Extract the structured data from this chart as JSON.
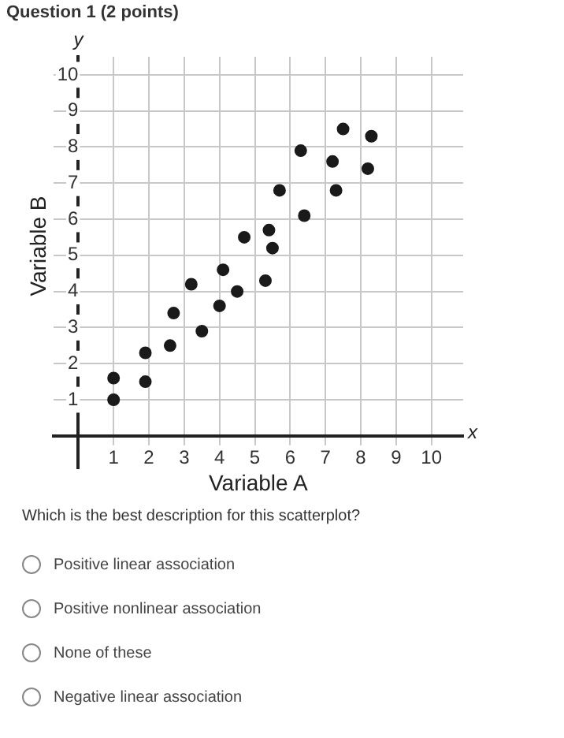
{
  "chart_data": {
    "type": "scatter",
    "title": "Question 1 (2 points)",
    "xlabel": "Variable A",
    "ylabel": "Variable B",
    "x": [
      1,
      1,
      1.9,
      1.9,
      2.6,
      2.7,
      3.2,
      3.5,
      4,
      4.1,
      4.5,
      5.3,
      4.7,
      5.4,
      5.5,
      5.7,
      6.3,
      6.4,
      7.2,
      7.3,
      7.5,
      8.2,
      8.3
    ],
    "values": [
      1.6,
      1,
      2.3,
      1.5,
      2.5,
      3.4,
      4.2,
      2.9,
      3.6,
      4.6,
      4,
      4.3,
      5.5,
      5.7,
      5.2,
      6.8,
      7.9,
      6.1,
      7.6,
      6.8,
      8.5,
      7.4,
      8.3
    ],
    "color": "#1a1a1a",
    "marker": "circle",
    "grid": true,
    "legend": false,
    "xlim": [
      -0.7,
      10.9
    ],
    "ylim": [
      -0.9,
      10.5
    ],
    "xticks": [
      1,
      2,
      3,
      4,
      5,
      6,
      7,
      8,
      9,
      10
    ],
    "yticks": [
      1,
      2,
      3,
      4,
      5,
      6,
      7,
      8,
      9,
      10
    ],
    "annotations": [
      "x",
      "y",
      "Which is the best description for this scatterplot?",
      "Positive linear association",
      "Positive nonlinear association",
      "None of these",
      "Negative linear association"
    ]
  }
}
